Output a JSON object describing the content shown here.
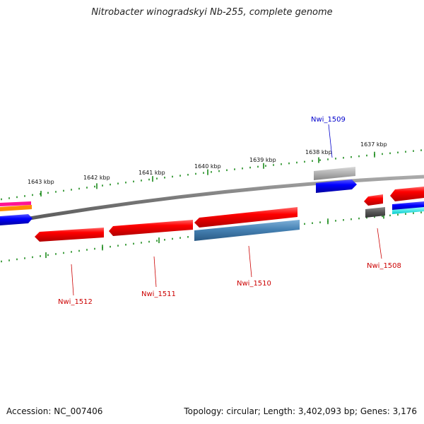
{
  "title": "Nitrobacter winogradskyi Nb-255, complete genome",
  "footer": {
    "accession": "Accession: NC_007406",
    "stats": "Topology: circular; Length: 3,402,093 bp; Genes: 3,176"
  },
  "colors": {
    "backbone": "#808080",
    "tick": "#1a8a1a",
    "gene_red": "#ff0000",
    "gene_blue": "#0000ff",
    "gene_steel": "#4682b4",
    "label_red": "#cc0000",
    "label_blue": "#0000cc"
  },
  "ticks": {
    "labels": [
      "1643 kbp",
      "1642 kbp",
      "1641 kbp",
      "1640 kbp",
      "1639 kbp",
      "1638 kbp",
      "1637 kbp"
    ]
  },
  "gene_labels": {
    "nwi_1509": "Nwi_1509",
    "nwi_1508": "Nwi_1508",
    "nwi_1510": "Nwi_1510",
    "nwi_1511": "Nwi_1511",
    "nwi_1512": "Nwi_1512"
  }
}
